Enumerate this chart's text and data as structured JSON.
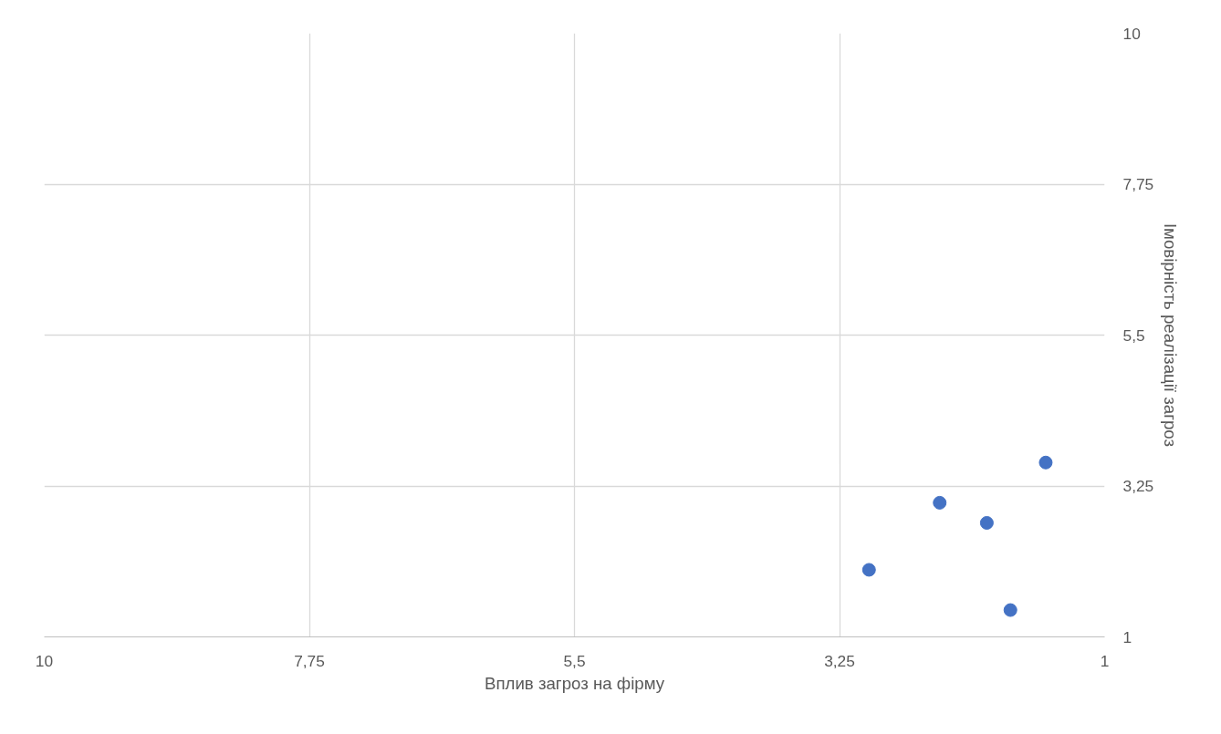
{
  "chart_data": {
    "type": "scatter",
    "xlabel": "Вплив загроз на фірму",
    "ylabel": "Імовірність реалізації загроз",
    "x": [
      3.0,
      2.4,
      2.0,
      1.8,
      1.5
    ],
    "series": [
      {
        "color": "#4472c4",
        "values": [
          2.0,
          3.0,
          2.7,
          1.4,
          3.6
        ]
      }
    ],
    "xlim": [
      10,
      1
    ],
    "xticks": [
      10,
      {
        "value": 7.75,
        "label": "7,75"
      },
      {
        "value": 5.5,
        "label": "5,5"
      },
      {
        "value": 3.25,
        "label": "3,25"
      },
      1
    ],
    "ylim": [
      1,
      10
    ],
    "yticks": [
      1,
      {
        "value": 3.25,
        "label": "3,25"
      },
      {
        "value": 5.5,
        "label": "5,5"
      },
      {
        "value": 7.75,
        "label": "7,75"
      },
      10
    ],
    "grid": true,
    "marker": "circle"
  }
}
